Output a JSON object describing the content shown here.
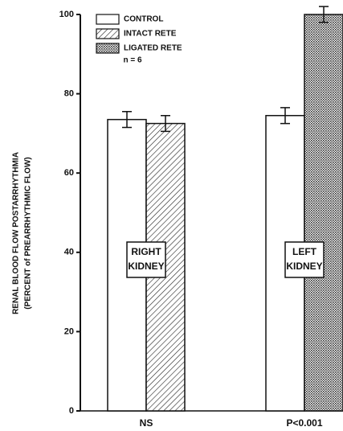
{
  "chart_data": {
    "type": "bar",
    "ylabel": [
      "RENAL BLOOD FLOW POSTARRHYTHMIA",
      "(PERCENT of PREARRHYTHMIC FLOW)"
    ],
    "annotation": "n = 6",
    "categories": [
      "NS",
      "P<0.001"
    ],
    "group_labels": [
      [
        "RIGHT",
        "KIDNEY"
      ],
      [
        "LEFT",
        "KIDNEY"
      ]
    ],
    "series": [
      {
        "name": "CONTROL",
        "color": "#ffffff",
        "pattern": "none",
        "values": [
          73.5,
          74.5
        ],
        "errors": [
          2,
          2
        ]
      },
      {
        "name": "INTACT RETE",
        "color": "#ffffff",
        "pattern": "hatch",
        "values": [
          72.5,
          null
        ],
        "errors": [
          2,
          null
        ]
      },
      {
        "name": "LIGATED RETE",
        "color": "#ffffff",
        "pattern": "crosshatch",
        "values": [
          null,
          100
        ],
        "errors": [
          null,
          2
        ]
      }
    ],
    "ylim": [
      0,
      100
    ],
    "yticks": [
      0,
      20,
      40,
      60,
      80,
      100
    ],
    "legend": "top-left"
  }
}
